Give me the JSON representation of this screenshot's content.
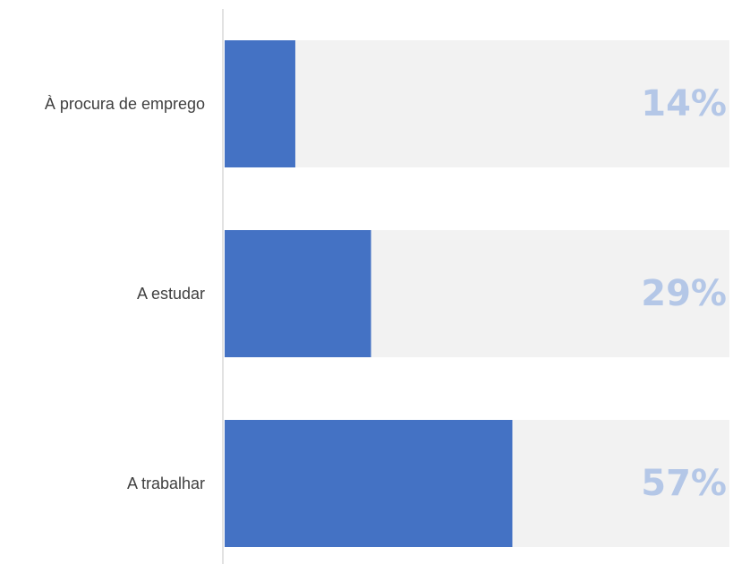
{
  "chart_data": {
    "type": "bar",
    "orientation": "horizontal",
    "categories": [
      "À procura de emprego",
      "A estudar",
      "A trabalhar"
    ],
    "values": [
      14,
      29,
      57
    ],
    "value_labels": [
      "14%",
      "29%",
      "57%"
    ],
    "xlim": [
      0,
      100
    ],
    "title": "",
    "xlabel": "",
    "ylabel": "",
    "grid": false,
    "legend": "none",
    "colors": {
      "bar": "#4472C4",
      "track": "#F2F2F2",
      "value_label": "#B4C7E7",
      "axis": "#D9D9D9",
      "category_text": "#404040"
    }
  }
}
